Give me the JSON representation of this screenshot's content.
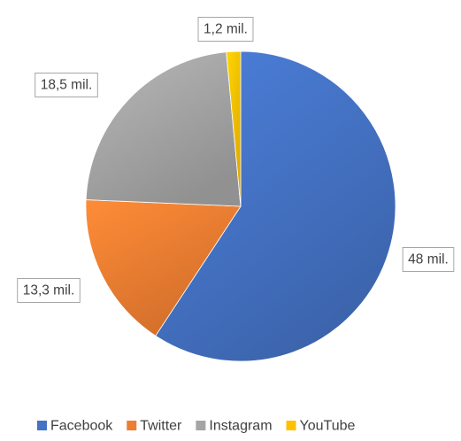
{
  "chart_data": {
    "type": "pie",
    "categories": [
      "Facebook",
      "Twitter",
      "Instagram",
      "YouTube"
    ],
    "values": [
      48,
      13.3,
      18.5,
      1.2
    ],
    "data_labels": [
      "48 mil.",
      "13,3 mil.",
      "18,5 mil.",
      "1,2 mil."
    ],
    "colors": [
      "#4472c4",
      "#ed7d31",
      "#a5a5a5",
      "#ffc000"
    ],
    "start_angle": "12 o'clock",
    "direction": "clockwise",
    "legend": {
      "position": "bottom",
      "entries": [
        "Facebook",
        "Twitter",
        "Instagram",
        "YouTube"
      ]
    },
    "title": ""
  }
}
